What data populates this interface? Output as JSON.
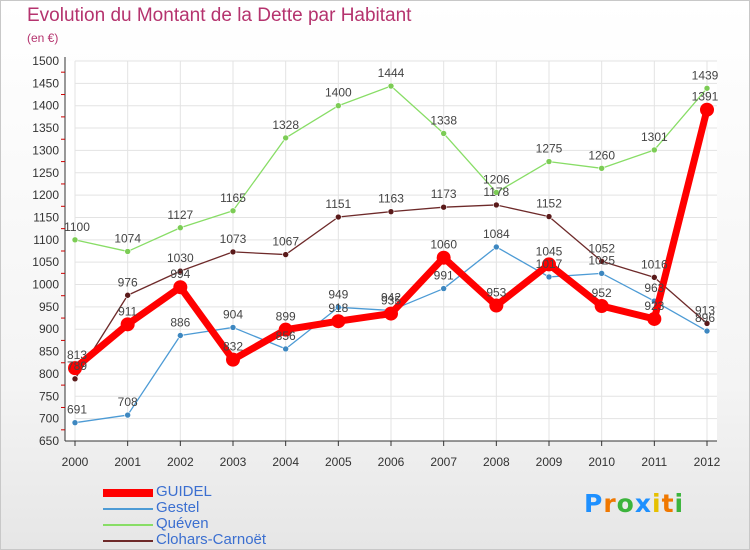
{
  "title": "Evolution du Montant de la Dette par Habitant",
  "unit": "(en €)",
  "brand": {
    "letters": [
      "P",
      "r",
      "o",
      "x",
      "i",
      "t",
      "i"
    ],
    "colors": [
      "#1e90ff",
      "#f07800",
      "#3cb43c",
      "#1e90ff",
      "#e6c000",
      "#f07800",
      "#3cb43c"
    ]
  },
  "chart_data": {
    "type": "line",
    "title": "Evolution du Montant de la Dette par Habitant",
    "ylabel": "(en €)",
    "x": [
      "2000",
      "2001",
      "2002",
      "2003",
      "2004",
      "2005",
      "2006",
      "2007",
      "2008",
      "2009",
      "2010",
      "2011",
      "2012"
    ],
    "ylim": [
      650,
      1500
    ],
    "yticks": [
      650,
      700,
      750,
      800,
      850,
      900,
      950,
      1000,
      1050,
      1100,
      1150,
      1200,
      1250,
      1300,
      1350,
      1400,
      1450,
      1500
    ],
    "grid": true,
    "legend_position": "bottom-left",
    "series": [
      {
        "name": "GUIDEL",
        "color": "#ff0000",
        "values": [
          813,
          911,
          994,
          832,
          899,
          918,
          935,
          1060,
          953,
          1045,
          952,
          923,
          1391
        ]
      },
      {
        "name": "Gestel",
        "color": "#4d9bd5",
        "values": [
          691,
          708,
          886,
          904,
          856,
          949,
          942,
          991,
          1084,
          1017,
          1025,
          963,
          896
        ]
      },
      {
        "name": "Quéven",
        "color": "#88dd66",
        "values": [
          1100,
          1074,
          1127,
          1165,
          1328,
          1400,
          1444,
          1338,
          1206,
          1275,
          1260,
          1301,
          1439
        ]
      },
      {
        "name": "Clohars-Carnoët",
        "color": "#6e2a2a",
        "values": [
          789,
          976,
          1030,
          1073,
          1067,
          1151,
          1163,
          1173,
          1178,
          1152,
          1052,
          1016,
          913
        ]
      }
    ]
  }
}
